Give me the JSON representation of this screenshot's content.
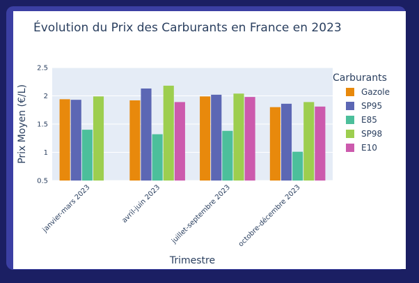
{
  "chart_data": {
    "type": "bar",
    "title": "Évolution du Prix des Carburants en France en 2023",
    "xlabel": "Trimestre",
    "ylabel": "Prix Moyen (€/L)",
    "ylim": [
      0.5,
      2.5
    ],
    "yticks": [
      "0.5",
      "1",
      "1.5",
      "2",
      "2.5"
    ],
    "categories": [
      "janvier-mars 2023",
      "avril-juin 2023",
      "juillet-septembre 2023",
      "octobre-décembre 2023"
    ],
    "legend_title": "Carburants",
    "legend_position": "right",
    "series": [
      {
        "name": "Gazole",
        "color": "#e8890c",
        "values": [
          1.94,
          1.92,
          1.99,
          1.8
        ]
      },
      {
        "name": "SP95",
        "color": "#5c67b4",
        "values": [
          1.93,
          2.13,
          2.02,
          1.86
        ]
      },
      {
        "name": "E85",
        "color": "#4cbf9b",
        "values": [
          1.4,
          1.32,
          1.38,
          1.01
        ]
      },
      {
        "name": "SP98",
        "color": "#9dce4f",
        "values": [
          1.99,
          2.18,
          2.04,
          1.89
        ]
      },
      {
        "name": "E10",
        "color": "#cc5aad",
        "values": [
          null,
          1.89,
          1.98,
          1.81
        ]
      }
    ]
  }
}
